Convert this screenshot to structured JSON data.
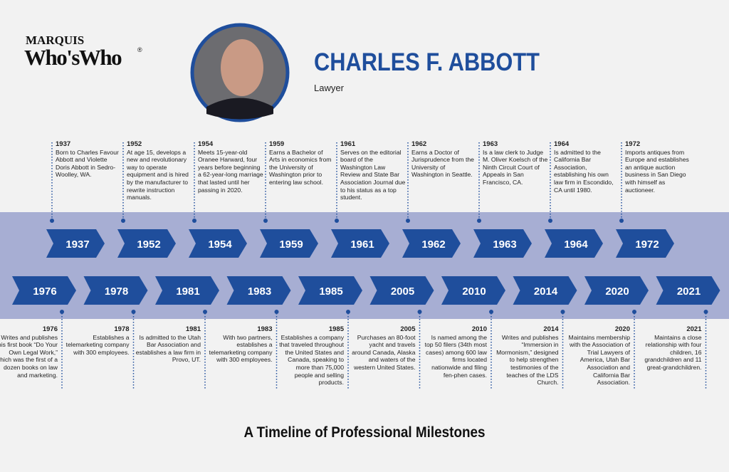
{
  "header": {
    "logo_top": "MARQUIS",
    "logo_bottom": "Who'sWho",
    "logo_mark": "®",
    "name": "CHARLES F. ABBOTT",
    "title": "Lawyer"
  },
  "timeline": {
    "top": [
      {
        "year": "1937",
        "text": "Born to Charles Favour Abbott and Violette Doris Abbott in Sedro-Woolley, WA."
      },
      {
        "year": "1952",
        "text": "At age 15, develops a new and revolutionary way to operate equipment and is hired by the manufacturer to rewrite instruction manuals."
      },
      {
        "year": "1954",
        "text": "Meets 15-year-old Oranee Harward, four years before beginning a 62-year-long marriage that lasted until her passing in 2020."
      },
      {
        "year": "1959",
        "text": "Earns a Bachelor of Arts in economics from the University of Washington prior to entering law school."
      },
      {
        "year": "1961",
        "text": "Serves on the editorial board of the Washington Law Review and State Bar Association Journal due to his status as a top student."
      },
      {
        "year": "1962",
        "text": "Earns a Doctor of Jurisprudence from the University of Washington in Seattle."
      },
      {
        "year": "1963",
        "text": "Is a law clerk to Judge M. Oliver Koelsch of the Ninth Circuit Court of Appeals in San Francisco, CA."
      },
      {
        "year": "1964",
        "text": "Is admitted to the California Bar Association, establishing his own law firm in Escondido, CA until 1980."
      },
      {
        "year": "1972",
        "text": "Imports antiques from Europe and establishes an antique auction business in San Diego with himself as auctioneer."
      }
    ],
    "bottom": [
      {
        "year": "1976",
        "text": "Writes and publishes his first book “Do Your Own Legal Work,” which was the first of a dozen books on law and marketing."
      },
      {
        "year": "1978",
        "text": "Establishes a telemarketing company with 300 employees."
      },
      {
        "year": "1981",
        "text": "Is admitted to the Utah Bar Association and establishes a law firm in Provo, UT."
      },
      {
        "year": "1983",
        "text": "With two partners, establishes a telemarketing company with 300 employees."
      },
      {
        "year": "1985",
        "text": "Establishes a company that traveled throughout the United States and Canada, speaking to more than 75,000 people and selling products."
      },
      {
        "year": "2005",
        "text": "Purchases an 80-foot yacht and travels around Canada, Alaska and waters of the western United States."
      },
      {
        "year": "2010",
        "text": "Is named among the top 50 filers (34th most cases) among 600 law firms located nationwide and filing fen-phen cases."
      },
      {
        "year": "2014",
        "text": "Writes and publishes “Immersion in Mormonism,” designed to help strengthen testimonies of the teaches of the LDS Church."
      },
      {
        "year": "2020",
        "text": "Maintains membership with the Association of Trial Lawyers of America, Utah Bar Association and California Bar Association."
      },
      {
        "year": "2021",
        "text": "Maintains a close relationship with four children, 16 grandchildren and 11 great-grandchildren."
      }
    ]
  },
  "footer": {
    "title": "A Timeline of Professional Milestones"
  }
}
